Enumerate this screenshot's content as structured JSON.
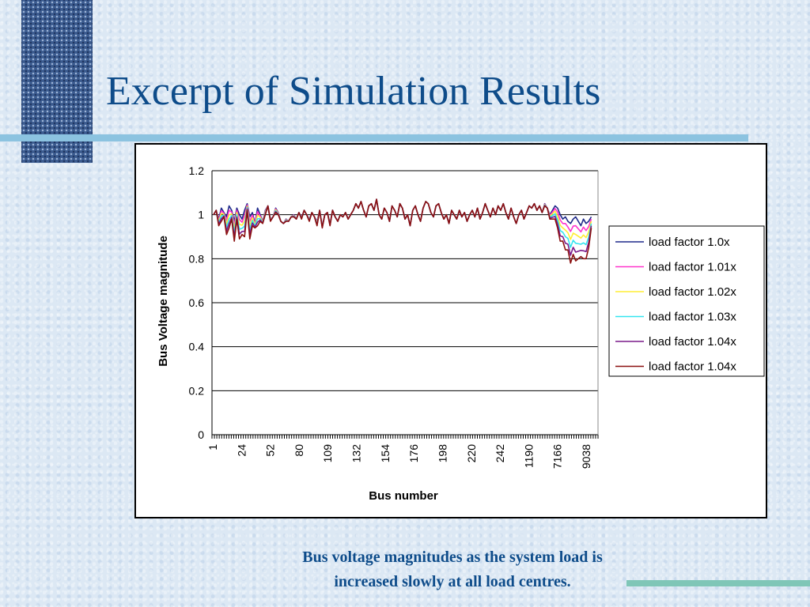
{
  "slide": {
    "title": "Excerpt of Simulation Results",
    "caption_line1": "Bus voltage magnitudes as the system load is",
    "caption_line2": "increased slowly at all load centres."
  },
  "colors": {
    "title": "#0e4c8a",
    "background": "#dce8f4",
    "accent_line_top": "#8cc3e0",
    "accent_line_bottom": "#7fc6b7"
  },
  "chart_data": {
    "type": "line",
    "xlabel": "Bus number",
    "ylabel": "Bus Voltage magnitude",
    "ylim": [
      0,
      1.2
    ],
    "yticks": [
      0,
      0.2,
      0.4,
      0.6,
      0.8,
      1,
      1.2
    ],
    "xtick_labels": [
      "1",
      "24",
      "52",
      "80",
      "109",
      "132",
      "154",
      "176",
      "198",
      "220",
      "242",
      "1190",
      "7166",
      "9038"
    ],
    "grid": "horizontal",
    "legend_position": "right",
    "base_profile": [
      1.0,
      1.02,
      0.98,
      1.03,
      1.01,
      0.99,
      1.04,
      1.02,
      0.97,
      1.03,
      1.0,
      0.98,
      1.02,
      1.05,
      0.99,
      1.01,
      0.96,
      1.03,
      1.0,
      0.97,
      1.02,
      1.04,
      0.98,
      0.99,
      1.03,
      1.01,
      0.97,
      0.96,
      0.98,
      0.97,
      0.99,
      1.0,
      0.98,
      1.01,
      0.99,
      1.02,
      1.0,
      0.98,
      1.01,
      0.99,
      0.97,
      1.02,
      0.95,
      1.0,
      1.01,
      0.96,
      1.02,
      0.99,
      0.97,
      1.0,
      0.99,
      1.01,
      0.98,
      1.0,
      1.02,
      1.05,
      1.03,
      1.06,
      1.02,
      0.99,
      1.04,
      1.05,
      1.02,
      1.07,
      1.0,
      0.98,
      1.03,
      1.01,
      0.97,
      1.04,
      1.02,
      0.99,
      1.05,
      1.03,
      0.98,
      1.0,
      0.95,
      1.02,
      1.04,
      1.0,
      0.97,
      1.03,
      1.06,
      1.05,
      1.01,
      0.99,
      1.04,
      1.05,
      1.01,
      0.98,
      1.0,
      0.96,
      1.02,
      1.0,
      0.98,
      1.02,
      0.99,
      1.01,
      0.97,
      1.0,
      1.02,
      0.99,
      1.03,
      0.98,
      1.01,
      1.05,
      1.02,
      0.99,
      1.03,
      1.0,
      1.04,
      1.02,
      1.05,
      1.01,
      0.98,
      1.03,
      0.99,
      0.96,
      1.0,
      1.02,
      0.98,
      1.01,
      1.04,
      1.03,
      1.05,
      1.02,
      1.04,
      1.01,
      1.05,
      1.03,
      1.0,
      1.02,
      1.04,
      1.03,
      1.0,
      0.98,
      0.99,
      0.97,
      0.96,
      0.98,
      0.99,
      0.97,
      0.95,
      0.98,
      0.96,
      0.97,
      0.99,
      0.98,
      1.03
    ],
    "dip_profile": [
      0,
      0,
      0.03,
      0.06,
      0.02,
      0.08,
      0.1,
      0.04,
      0.09,
      0.05,
      0.11,
      0.07,
      0.12,
      0.03,
      0.1,
      0.06,
      0.02,
      0.08,
      0.03,
      0.01,
      0.02,
      0,
      0.01,
      0,
      0.02,
      0.01,
      0,
      0,
      0.01,
      0,
      0,
      0.01,
      0,
      0,
      0.01,
      0,
      0,
      0.01,
      0,
      0,
      0.02,
      0,
      0.01,
      0,
      0,
      0.01,
      0,
      0,
      0,
      0,
      0,
      0,
      0,
      0,
      0,
      0,
      0,
      0,
      0,
      0,
      0,
      0,
      0,
      0,
      0,
      0,
      0,
      0,
      0,
      0,
      0,
      0,
      0,
      0,
      0,
      0,
      0,
      0,
      0,
      0,
      0,
      0,
      0,
      0,
      0,
      0,
      0,
      0,
      0,
      0,
      0,
      0,
      0,
      0,
      0,
      0,
      0,
      0,
      0,
      0,
      0,
      0,
      0,
      0,
      0,
      0,
      0,
      0,
      0,
      0,
      0,
      0,
      0,
      0,
      0,
      0,
      0,
      0,
      0,
      0,
      0,
      0,
      0,
      0,
      0,
      0,
      0,
      0,
      0.01,
      0,
      0.02,
      0.04,
      0.06,
      0.09,
      0.12,
      0.1,
      0.15,
      0.13,
      0.18,
      0.16,
      0.2,
      0.17,
      0.14,
      0.18,
      0.16,
      0.12,
      0.05
    ],
    "series": [
      {
        "name": "load factor 1.0x",
        "color": "#1f2a8a",
        "factor": 0.0
      },
      {
        "name": "load factor 1.01x",
        "color": "#ff33cc",
        "factor": 0.2
      },
      {
        "name": "load factor 1.02x",
        "color": "#ffee33",
        "factor": 0.4
      },
      {
        "name": "load factor 1.03x",
        "color": "#33e5f0",
        "factor": 0.6
      },
      {
        "name": "load factor 1.04x",
        "color": "#7a1a8a",
        "factor": 0.8
      },
      {
        "name": "load factor 1.04x",
        "color": "#8b1010",
        "factor": 1.0
      }
    ]
  }
}
